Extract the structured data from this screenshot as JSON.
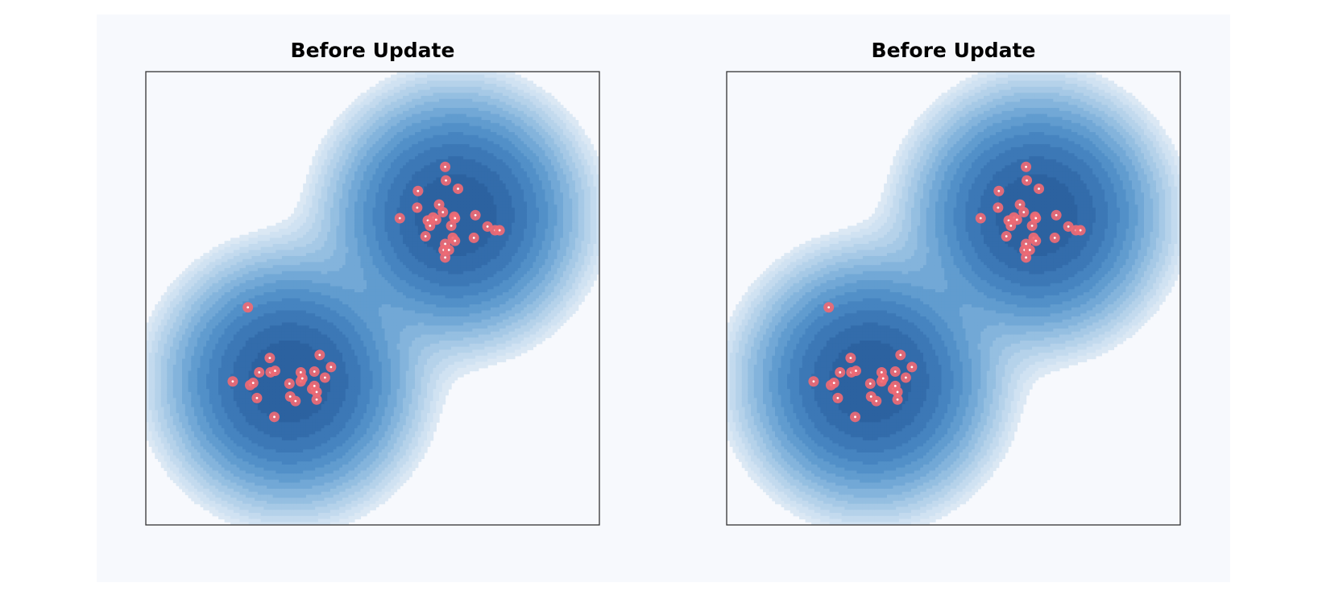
{
  "chart_data": [
    {
      "type": "scatter",
      "title": "Before Update",
      "xlabel": "",
      "ylabel": "",
      "axes_ticks": false,
      "xlim": [
        -3,
        3
      ],
      "ylim": [
        -3,
        3
      ],
      "background": "density-contour",
      "density_components": [
        {
          "center": [
            -1.1,
            -1.1
          ],
          "sigma": 0.7
        },
        {
          "center": [
            1.1,
            1.1
          ],
          "sigma": 0.7
        }
      ],
      "series": [
        {
          "marker_color": "#ee6a74",
          "points": [
            [
              -1.65,
              -0.12
            ],
            [
              -1.85,
              -1.1
            ],
            [
              -1.62,
              -1.15
            ],
            [
              -1.58,
              -1.12
            ],
            [
              -1.5,
              -0.98
            ],
            [
              -1.35,
              -0.98
            ],
            [
              -1.29,
              -0.96
            ],
            [
              -1.36,
              -0.79
            ],
            [
              -1.53,
              -1.32
            ],
            [
              -1.3,
              -1.57
            ],
            [
              -1.1,
              -1.13
            ],
            [
              -0.95,
              -1.1
            ],
            [
              -0.95,
              -0.98
            ],
            [
              -0.93,
              -1.06
            ],
            [
              -1.09,
              -1.3
            ],
            [
              -1.02,
              -1.36
            ],
            [
              -0.8,
              -1.2
            ],
            [
              -0.77,
              -1.16
            ],
            [
              -0.74,
              -1.24
            ],
            [
              -0.74,
              -1.34
            ],
            [
              -0.77,
              -0.97
            ],
            [
              -0.63,
              -1.05
            ],
            [
              -0.7,
              -0.75
            ],
            [
              -0.55,
              -0.91
            ],
            [
              0.96,
              1.74
            ],
            [
              0.97,
              1.56
            ],
            [
              1.13,
              1.45
            ],
            [
              0.6,
              1.42
            ],
            [
              0.59,
              1.2
            ],
            [
              0.36,
              1.06
            ],
            [
              0.88,
              1.24
            ],
            [
              0.93,
              1.14
            ],
            [
              0.8,
              1.07
            ],
            [
              0.73,
              1.03
            ],
            [
              0.84,
              1.04
            ],
            [
              0.76,
              0.96
            ],
            [
              1.04,
              0.96
            ],
            [
              1.08,
              1.08
            ],
            [
              1.09,
              1.06
            ],
            [
              0.7,
              0.82
            ],
            [
              0.96,
              0.72
            ],
            [
              0.94,
              0.64
            ],
            [
              1.01,
              0.64
            ],
            [
              0.96,
              0.54
            ],
            [
              1.06,
              0.8
            ],
            [
              1.09,
              0.76
            ],
            [
              1.36,
              1.1
            ],
            [
              1.34,
              0.8
            ],
            [
              1.52,
              0.95
            ],
            [
              1.62,
              0.9
            ],
            [
              1.68,
              0.9
            ]
          ]
        }
      ]
    },
    {
      "type": "scatter",
      "title": "Before Update",
      "xlabel": "",
      "ylabel": "",
      "axes_ticks": false,
      "xlim": [
        -3,
        3
      ],
      "ylim": [
        -3,
        3
      ],
      "background": "density-contour",
      "density_components": [
        {
          "center": [
            -1.1,
            -1.1
          ],
          "sigma": 0.7
        },
        {
          "center": [
            1.1,
            1.1
          ],
          "sigma": 0.7
        }
      ],
      "series": [
        {
          "marker_color": "#ee6a74",
          "points": [
            [
              -1.65,
              -0.12
            ],
            [
              -1.85,
              -1.1
            ],
            [
              -1.62,
              -1.15
            ],
            [
              -1.58,
              -1.12
            ],
            [
              -1.5,
              -0.98
            ],
            [
              -1.35,
              -0.98
            ],
            [
              -1.29,
              -0.96
            ],
            [
              -1.36,
              -0.79
            ],
            [
              -1.53,
              -1.32
            ],
            [
              -1.3,
              -1.57
            ],
            [
              -1.1,
              -1.13
            ],
            [
              -0.95,
              -1.1
            ],
            [
              -0.95,
              -0.98
            ],
            [
              -0.93,
              -1.06
            ],
            [
              -1.09,
              -1.3
            ],
            [
              -1.02,
              -1.36
            ],
            [
              -0.8,
              -1.2
            ],
            [
              -0.77,
              -1.16
            ],
            [
              -0.74,
              -1.24
            ],
            [
              -0.74,
              -1.34
            ],
            [
              -0.77,
              -0.97
            ],
            [
              -0.63,
              -1.05
            ],
            [
              -0.7,
              -0.75
            ],
            [
              -0.55,
              -0.91
            ],
            [
              0.96,
              1.74
            ],
            [
              0.97,
              1.56
            ],
            [
              1.13,
              1.45
            ],
            [
              0.6,
              1.42
            ],
            [
              0.59,
              1.2
            ],
            [
              0.36,
              1.06
            ],
            [
              0.88,
              1.24
            ],
            [
              0.93,
              1.14
            ],
            [
              0.8,
              1.07
            ],
            [
              0.73,
              1.03
            ],
            [
              0.84,
              1.04
            ],
            [
              0.76,
              0.96
            ],
            [
              1.04,
              0.96
            ],
            [
              1.08,
              1.08
            ],
            [
              1.09,
              1.06
            ],
            [
              0.7,
              0.82
            ],
            [
              0.96,
              0.72
            ],
            [
              0.94,
              0.64
            ],
            [
              1.01,
              0.64
            ],
            [
              0.96,
              0.54
            ],
            [
              1.06,
              0.8
            ],
            [
              1.09,
              0.76
            ],
            [
              1.36,
              1.1
            ],
            [
              1.34,
              0.8
            ],
            [
              1.52,
              0.95
            ],
            [
              1.62,
              0.9
            ],
            [
              1.68,
              0.9
            ]
          ]
        }
      ]
    }
  ]
}
